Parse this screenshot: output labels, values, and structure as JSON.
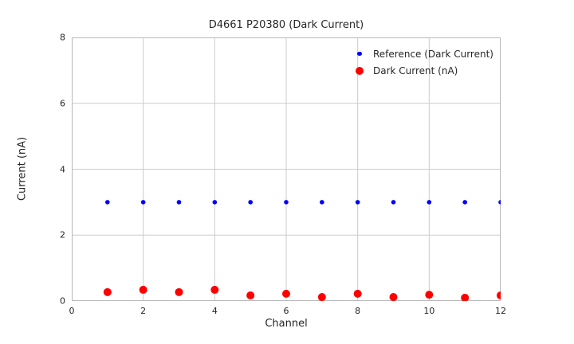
{
  "figure": {
    "background": "#ffffff"
  },
  "chart_data": {
    "type": "scatter",
    "title": "D4661 P20380 (Dark Current)",
    "xlabel": "Channel",
    "ylabel": "Current (nA)",
    "xlim": [
      0,
      12
    ],
    "ylim": [
      0,
      8
    ],
    "xticks": [
      0,
      2,
      4,
      6,
      8,
      10,
      12
    ],
    "yticks": [
      0,
      2,
      4,
      6,
      8
    ],
    "grid": true,
    "legend_position": "upper right inside",
    "x": [
      1,
      2,
      3,
      4,
      5,
      6,
      7,
      8,
      9,
      10,
      11,
      12
    ],
    "series": [
      {
        "name": "Reference (Dark Current)",
        "color": "#0000ff",
        "marker_radius": 2.8,
        "values": [
          3,
          3,
          3,
          3,
          3,
          3,
          3,
          3,
          3,
          3,
          3,
          3
        ]
      },
      {
        "name": "Dark Current (nA)",
        "color": "#ff0000",
        "marker_radius": 5,
        "values": [
          0.27,
          0.34,
          0.27,
          0.34,
          0.17,
          0.22,
          0.12,
          0.22,
          0.12,
          0.19,
          0.1,
          0.17
        ]
      }
    ],
    "colors": {
      "grid": "#cccccc",
      "border": "#b9b9b9",
      "text": "#262626"
    }
  }
}
